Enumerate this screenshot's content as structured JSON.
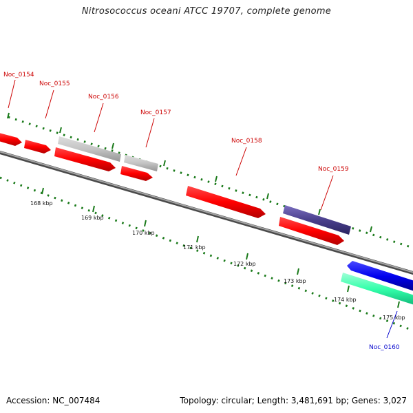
{
  "title": "Nitrosococcus oceani ATCC 19707, complete genome",
  "footer": {
    "accession": "Accession: NC_007484",
    "stats": "Topology: circular; Length: 3,481,691 bp; Genes: 3,027"
  },
  "scale_labels": [
    "168 kbp",
    "169 kbp",
    "170 kbp",
    "171 kbp",
    "172 kbp",
    "173 kbp",
    "174 kbp",
    "175 kbp"
  ],
  "genes": [
    {
      "name": "Noc_0154",
      "color": "#cc0000"
    },
    {
      "name": "Noc_0155",
      "color": "#cc0000"
    },
    {
      "name": "Noc_0156",
      "color": "#cc0000"
    },
    {
      "name": "Noc_0157",
      "color": "#cc0000"
    },
    {
      "name": "Noc_0158",
      "color": "#cc0000"
    },
    {
      "name": "Noc_0159",
      "color": "#cc0000"
    },
    {
      "name": "Noc_0160",
      "color": "#0000cc"
    }
  ],
  "colors": {
    "cds_forward": "#ff0000",
    "cds_other": "#bdbdbd",
    "cds_purple": "#4a3f8c",
    "cds_reverse": "#0000ee",
    "cds_teal": "#33ffaa",
    "backbone": "#7a7a7a",
    "ticks": "#1a7a1a"
  }
}
